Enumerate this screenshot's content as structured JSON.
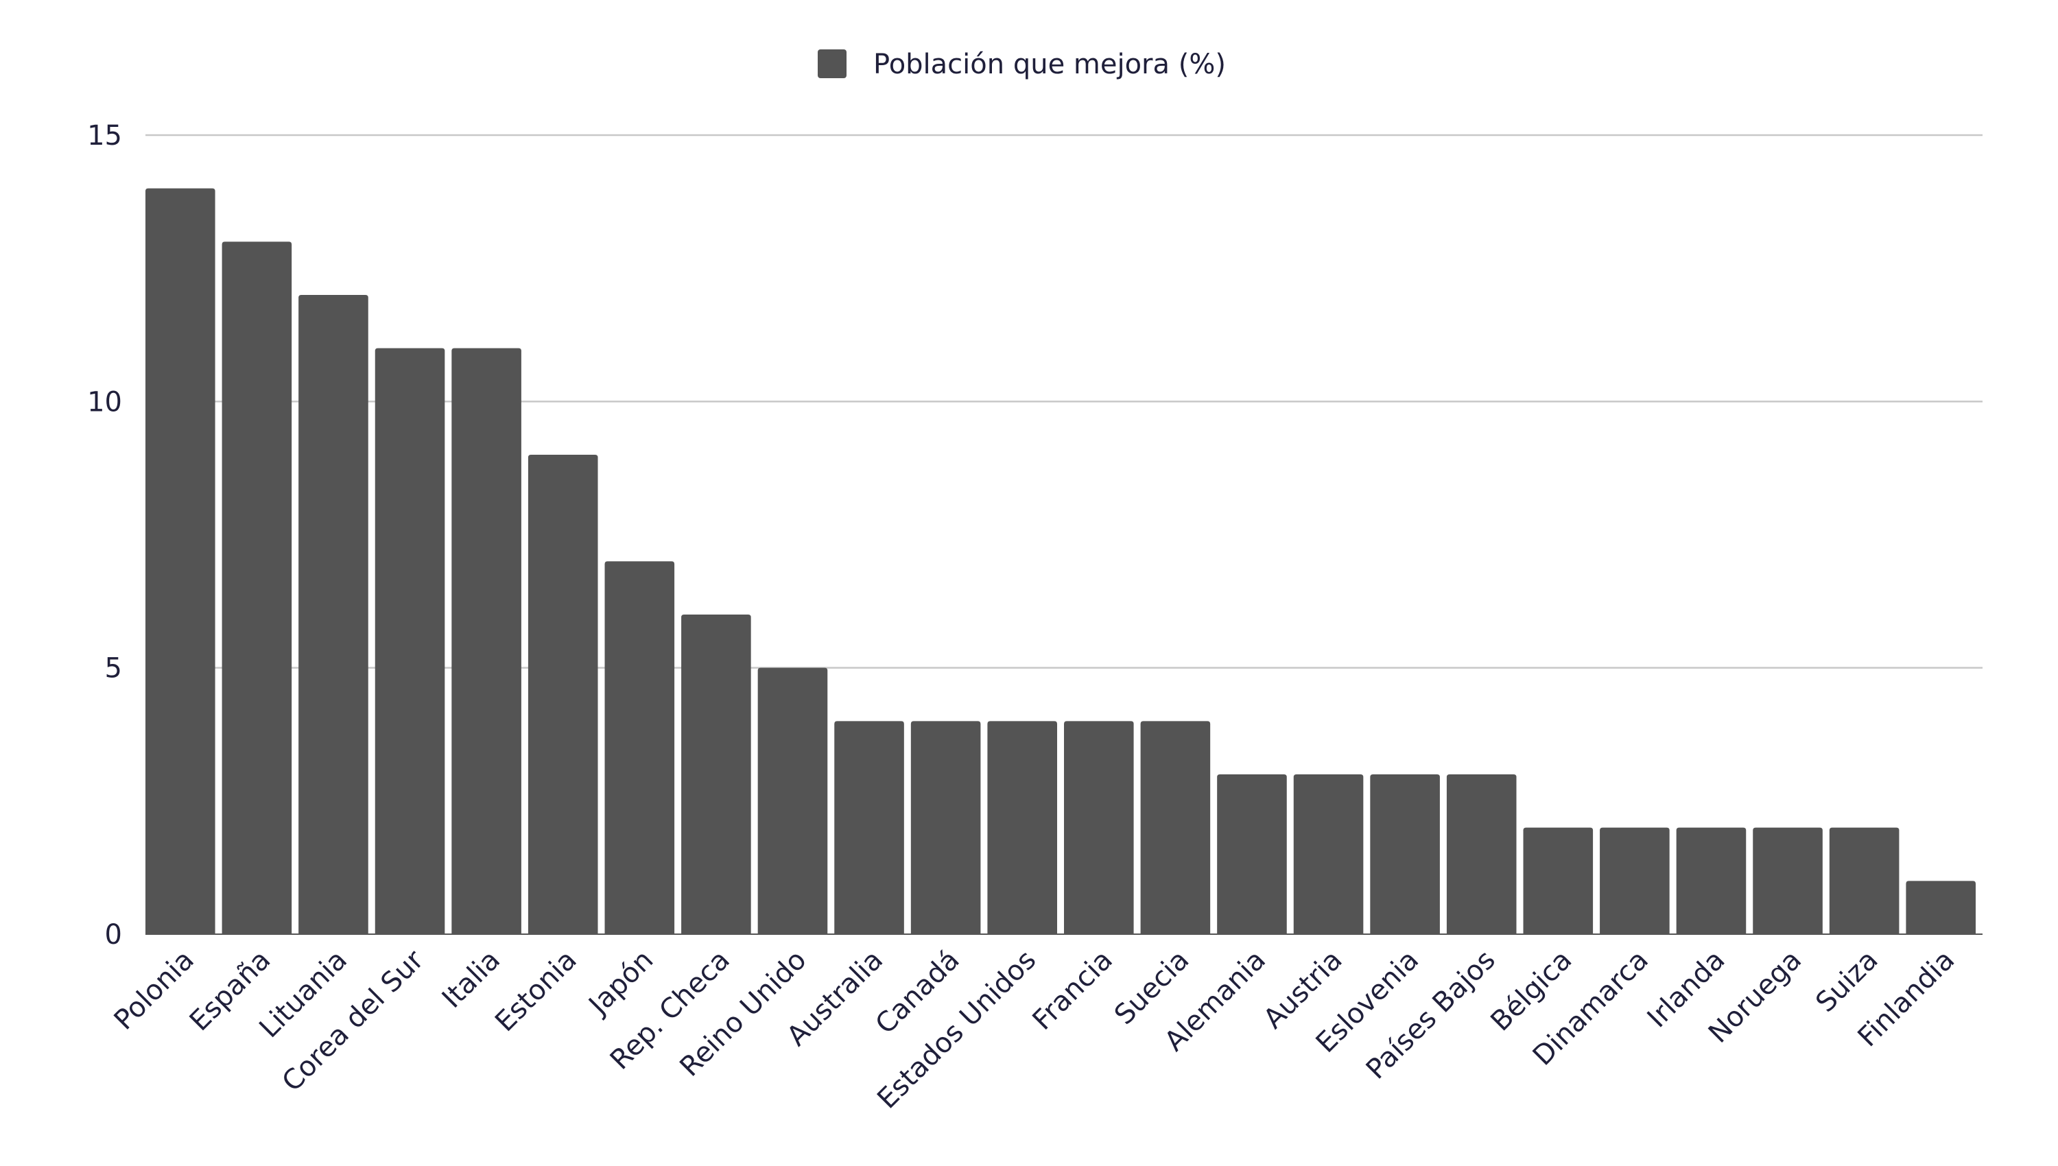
{
  "colors": {
    "bar": "#545454",
    "grid": "#c8c8c8",
    "text": "#1f1f3a",
    "background": "#ffffff"
  },
  "chart_data": {
    "type": "bar",
    "title": "",
    "xlabel": "",
    "ylabel": "",
    "legend": {
      "position": "top-center",
      "entries": [
        "Población que mejora (%)"
      ]
    },
    "grid": true,
    "ylim": [
      0,
      15
    ],
    "yticks": [
      0,
      5,
      10,
      15
    ],
    "categories": [
      "Polonia",
      "España",
      "Lituania",
      "Corea del Sur",
      "Italia",
      "Estonia",
      "Japón",
      "Rep. Checa",
      "Reino Unido",
      "Australia",
      "Canadá",
      "Estados Unidos",
      "Francia",
      "Suecia",
      "Alemania",
      "Austria",
      "Eslovenia",
      "Países Bajos",
      "Bélgica",
      "Dinamarca",
      "Irlanda",
      "Noruega",
      "Suiza",
      "Finlandia"
    ],
    "series": [
      {
        "name": "Población que mejora (%)",
        "values": [
          14,
          13,
          12,
          11,
          11,
          9,
          7,
          6,
          5,
          4,
          4,
          4,
          4,
          4,
          3,
          3,
          3,
          3,
          2,
          2,
          2,
          2,
          2,
          1
        ]
      }
    ]
  }
}
